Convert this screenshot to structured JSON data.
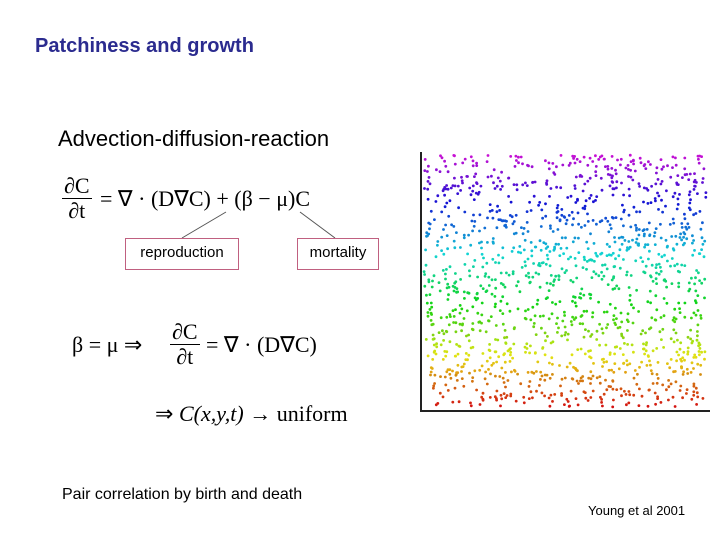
{
  "title": "Patchiness and growth",
  "heading": "Advection-diffusion-reaction",
  "equation1": {
    "numerator": "∂C",
    "denominator": "∂t",
    "rhs": "= ∇ · (D∇C) + (β − μ)C"
  },
  "labels": {
    "reproduction": "reproduction",
    "mortality": "mortality"
  },
  "equation2": {
    "lhs": "β = μ ⇒",
    "numerator": "∂C",
    "denominator": "∂t",
    "rhs": "= ∇ · (D∇C)"
  },
  "equation3": {
    "arrow": "⇒",
    "function": "C(x,y,t)",
    "result": "→ uniform"
  },
  "caption": "Pair correlation by birth and death",
  "citation": "Young et al 2001"
}
